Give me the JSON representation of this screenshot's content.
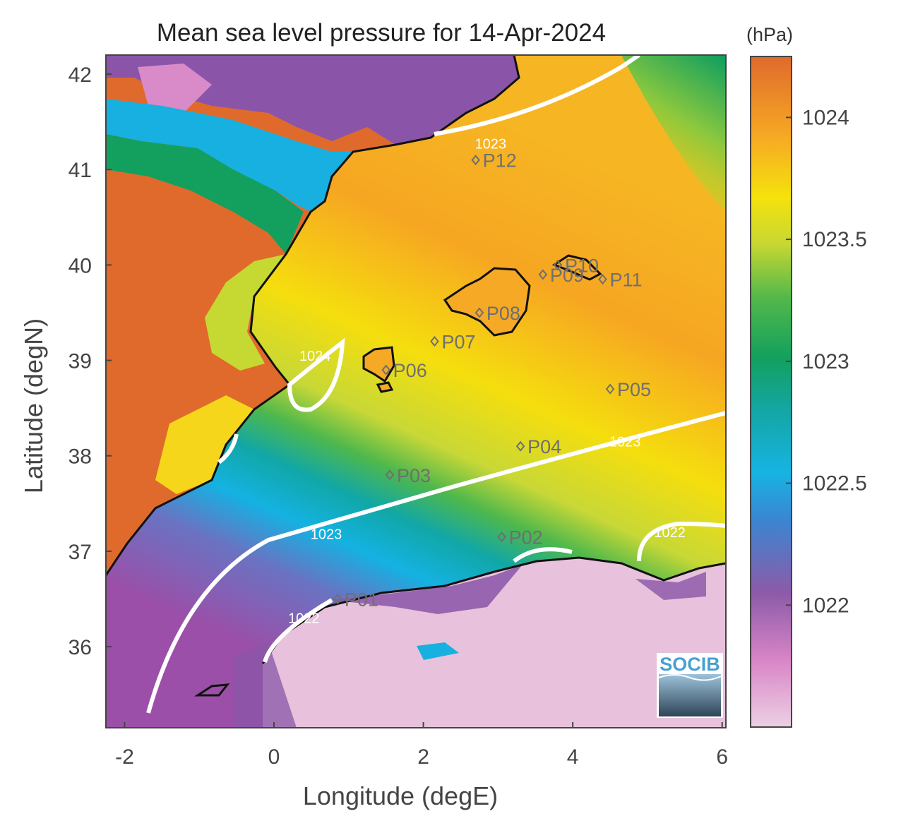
{
  "title": "Mean sea level pressure for 14-Apr-2024",
  "xlabel": "Longitude (degE)",
  "ylabel": "Latitude (degN)",
  "colorbar": {
    "unit": "(hPa)",
    "ticks": [
      "1024",
      "1023.5",
      "1023",
      "1022.5",
      "1022"
    ],
    "tick_values": [
      1024,
      1023.5,
      1023,
      1022.5,
      1022
    ],
    "range": [
      1021.5,
      1024.25
    ]
  },
  "x_ticks": [
    "-2",
    "0",
    "2",
    "4",
    "6"
  ],
  "y_ticks": [
    "42",
    "41",
    "40",
    "39",
    "38",
    "37",
    "36"
  ],
  "x_range": [
    -2.25,
    6.05
  ],
  "y_range": [
    35.15,
    42.2
  ],
  "contour_labels": [
    {
      "text": "1023",
      "lon": 2.9,
      "lat": 41.27
    },
    {
      "text": "1024",
      "lon": 0.55,
      "lat": 39.05
    },
    {
      "text": "1023",
      "lon": 4.7,
      "lat": 38.15
    },
    {
      "text": "1023",
      "lon": 0.7,
      "lat": 37.18
    },
    {
      "text": "1022",
      "lon": 5.3,
      "lat": 37.2
    },
    {
      "text": "1022",
      "lon": 0.4,
      "lat": 36.3
    }
  ],
  "stations": [
    {
      "id": "P01",
      "lon": 0.85,
      "lat": 36.5
    },
    {
      "id": "P02",
      "lon": 3.05,
      "lat": 37.15
    },
    {
      "id": "P03",
      "lon": 1.55,
      "lat": 37.8
    },
    {
      "id": "P04",
      "lon": 3.3,
      "lat": 38.1
    },
    {
      "id": "P05",
      "lon": 4.5,
      "lat": 38.7
    },
    {
      "id": "P06",
      "lon": 1.5,
      "lat": 38.9
    },
    {
      "id": "P07",
      "lon": 2.15,
      "lat": 39.2
    },
    {
      "id": "P08",
      "lon": 2.75,
      "lat": 39.5
    },
    {
      "id": "P09",
      "lon": 3.6,
      "lat": 39.9
    },
    {
      "id": "P10",
      "lon": 3.8,
      "lat": 40.0
    },
    {
      "id": "P11",
      "lon": 4.4,
      "lat": 39.85
    },
    {
      "id": "P12",
      "lon": 2.7,
      "lat": 41.1
    }
  ],
  "logo": {
    "text": "SOCIB"
  },
  "colors": {
    "high": "#e06a2c",
    "mid_high": "#f5e20c",
    "mid": "#1aa35a",
    "mid_low": "#12b0e0",
    "low": "#8a55a8",
    "lowest": "#e8c2dc",
    "coast": "#111111",
    "contour": "#ffffff"
  }
}
